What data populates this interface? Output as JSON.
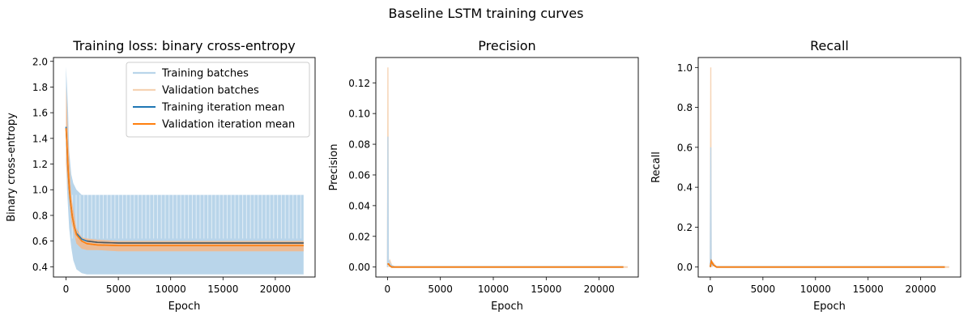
{
  "figure": {
    "suptitle": "Baseline LSTM training curves"
  },
  "colors": {
    "train_light": "#b9d5ea",
    "val_light": "#f6d3b3",
    "train_mean": "#1f77b4",
    "val_mean": "#ff7f0e",
    "train_mean_overlap": "#555555"
  },
  "chart_data": [
    {
      "type": "line",
      "title": "Training loss: binary cross-entropy",
      "xlabel": "Epoch",
      "ylabel": "Binary cross-entropy",
      "xlim": [
        -1200,
        23800
      ],
      "ylim": [
        0.32,
        2.03
      ],
      "xticks": [
        0,
        5000,
        10000,
        15000,
        20000
      ],
      "xtick_labels": [
        "0",
        "5000",
        "10000",
        "15000",
        "20000"
      ],
      "yticks": [
        0.4,
        0.6,
        0.8,
        1.0,
        1.2,
        1.4,
        1.6,
        1.8,
        2.0
      ],
      "ytick_labels": [
        "0.4",
        "0.6",
        "0.8",
        "1.0",
        "1.2",
        "1.4",
        "1.6",
        "1.8",
        "2.0"
      ],
      "legend": {
        "position": "upper-right",
        "entries": [
          "Training batches",
          "Validation batches",
          "Training iteration mean",
          "Validation iteration mean"
        ]
      },
      "series": [
        {
          "name": "Training batches",
          "x": [
            0,
            100,
            200,
            300,
            500,
            700,
            1000,
            1500,
            2000,
            3000,
            5000,
            10000,
            15000,
            20000,
            22700
          ],
          "y_high": [
            1.96,
            1.8,
            1.6,
            1.3,
            1.12,
            1.05,
            1.0,
            0.96,
            0.96,
            0.96,
            0.96,
            0.96,
            0.96,
            0.96,
            0.96
          ],
          "y_low": [
            1.3,
            1.0,
            0.85,
            0.7,
            0.55,
            0.45,
            0.38,
            0.35,
            0.34,
            0.34,
            0.34,
            0.34,
            0.34,
            0.34,
            0.34
          ]
        },
        {
          "name": "Validation batches",
          "x": [
            0,
            200,
            500,
            1000,
            1500,
            2000,
            3000,
            5000,
            10000,
            15000,
            20000,
            22700
          ],
          "y_high": [
            1.8,
            1.4,
            0.95,
            0.7,
            0.63,
            0.62,
            0.61,
            0.6,
            0.6,
            0.6,
            0.6,
            0.6
          ],
          "y_low": [
            1.2,
            1.0,
            0.75,
            0.58,
            0.54,
            0.53,
            0.53,
            0.52,
            0.52,
            0.52,
            0.52,
            0.52
          ]
        },
        {
          "name": "Training iteration mean",
          "x": [
            0,
            100,
            200,
            300,
            400,
            600,
            800,
            1000,
            1500,
            2000,
            3000,
            5000,
            10000,
            15000,
            20000,
            22700
          ],
          "y": [
            1.49,
            1.32,
            1.15,
            1.02,
            0.92,
            0.79,
            0.71,
            0.66,
            0.615,
            0.6,
            0.59,
            0.585,
            0.585,
            0.585,
            0.585,
            0.585
          ]
        },
        {
          "name": "Validation iteration mean",
          "x": [
            0,
            100,
            200,
            300,
            400,
            600,
            800,
            1000,
            1500,
            2000,
            3000,
            5000,
            10000,
            15000,
            20000,
            22700
          ],
          "y": [
            1.48,
            1.33,
            1.16,
            1.03,
            0.93,
            0.79,
            0.71,
            0.65,
            0.6,
            0.58,
            0.57,
            0.565,
            0.565,
            0.565,
            0.565,
            0.565
          ]
        }
      ]
    },
    {
      "type": "line",
      "title": "Precision",
      "xlabel": "Epoch",
      "ylabel": "Precision",
      "xlim": [
        -1100,
        23700
      ],
      "ylim": [
        -0.0065,
        0.1365
      ],
      "xticks": [
        0,
        5000,
        10000,
        15000,
        20000
      ],
      "xtick_labels": [
        "0",
        "5000",
        "10000",
        "15000",
        "20000"
      ],
      "yticks": [
        0.0,
        0.02,
        0.04,
        0.06,
        0.08,
        0.1,
        0.12
      ],
      "ytick_labels": [
        "0.00",
        "0.02",
        "0.04",
        "0.06",
        "0.08",
        "0.10",
        "0.12"
      ],
      "series": [
        {
          "name": "Validation batches",
          "x": [
            0,
            40,
            80,
            150,
            250,
            400,
            700,
            1000,
            22700
          ],
          "y": [
            0.0,
            0.13,
            0.005,
            0.0,
            0.004,
            0.001,
            0.0,
            0.0,
            0.0
          ]
        },
        {
          "name": "Training batches",
          "x": [
            0,
            40,
            80,
            150,
            250,
            400,
            700,
            1000,
            22700
          ],
          "y": [
            0.0,
            0.085,
            0.003,
            0.004,
            0.002,
            0.001,
            0.0,
            0.0,
            0.0
          ]
        },
        {
          "name": "Training iteration mean",
          "x": [
            0,
            100,
            200,
            400,
            700,
            22300
          ],
          "y": [
            0.002,
            0.002,
            0.001,
            0.0,
            0.0,
            0.0
          ]
        },
        {
          "name": "Validation iteration mean",
          "x": [
            0,
            100,
            200,
            400,
            700,
            22300
          ],
          "y": [
            0.002,
            0.002,
            0.001,
            0.0,
            0.0,
            0.0
          ]
        }
      ]
    },
    {
      "type": "line",
      "title": "Recall",
      "xlabel": "Epoch",
      "ylabel": "Recall",
      "xlim": [
        -1150,
        23800
      ],
      "ylim": [
        -0.05,
        1.05
      ],
      "xticks": [
        0,
        5000,
        10000,
        15000,
        20000
      ],
      "xtick_labels": [
        "0",
        "5000",
        "10000",
        "15000",
        "20000"
      ],
      "yticks": [
        0.0,
        0.2,
        0.4,
        0.6,
        0.8,
        1.0
      ],
      "ytick_labels": [
        "0.0",
        "0.2",
        "0.4",
        "0.6",
        "0.8",
        "1.0"
      ],
      "series": [
        {
          "name": "Validation batches",
          "x": [
            0,
            40,
            80,
            150,
            300,
            600,
            1000,
            22700
          ],
          "y": [
            0.0,
            1.0,
            0.03,
            0.0,
            0.02,
            0.0,
            0.0,
            0.0
          ]
        },
        {
          "name": "Training batches",
          "x": [
            0,
            40,
            80,
            150,
            300,
            600,
            1000,
            22700
          ],
          "y": [
            0.0,
            0.6,
            0.02,
            0.01,
            0.01,
            0.0,
            0.0,
            0.0
          ]
        },
        {
          "name": "Training iteration mean",
          "x": [
            0,
            100,
            300,
            600,
            1000,
            22300
          ],
          "y": [
            0.0,
            0.03,
            0.01,
            0.0,
            0.0,
            0.0
          ]
        },
        {
          "name": "Validation iteration mean",
          "x": [
            0,
            100,
            300,
            600,
            1000,
            22300
          ],
          "y": [
            0.0,
            0.03,
            0.01,
            0.0,
            0.0,
            0.0
          ]
        }
      ]
    }
  ]
}
